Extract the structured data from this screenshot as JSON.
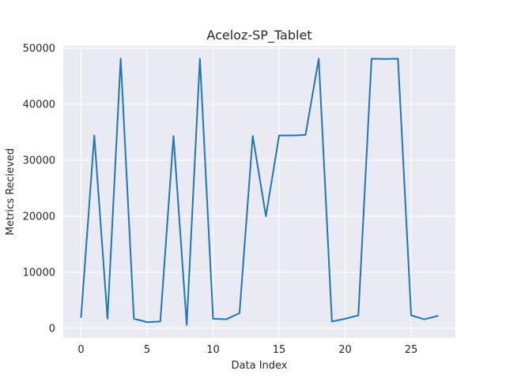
{
  "chart_data": {
    "type": "line",
    "title": "Aceloz-SP_Tablet",
    "xlabel": "Data Index",
    "ylabel": "Metrics Recieved",
    "xlim": [
      -1.35,
      28.35
    ],
    "ylim": [
      -1700,
      50400
    ],
    "xticks": [
      0,
      5,
      10,
      15,
      20,
      25
    ],
    "yticks": [
      0,
      10000,
      20000,
      30000,
      40000,
      50000
    ],
    "grid": true,
    "background_color": "#eaeaf2",
    "series": [
      {
        "color": "#1f77b4",
        "x": [
          0,
          1,
          2,
          3,
          4,
          5,
          6,
          7,
          8,
          9,
          10,
          11,
          12,
          13,
          14,
          15,
          16,
          17,
          18,
          19,
          20,
          21,
          22,
          23,
          24,
          25,
          26,
          27
        ],
        "y": [
          2000,
          34400,
          1700,
          48100,
          1700,
          1100,
          1200,
          34300,
          600,
          48100,
          1700,
          1600,
          2700,
          34300,
          20000,
          34400,
          34400,
          34500,
          48100,
          1200,
          1700,
          2300,
          48100,
          48050,
          48100,
          2300,
          1600,
          2200
        ]
      }
    ]
  }
}
